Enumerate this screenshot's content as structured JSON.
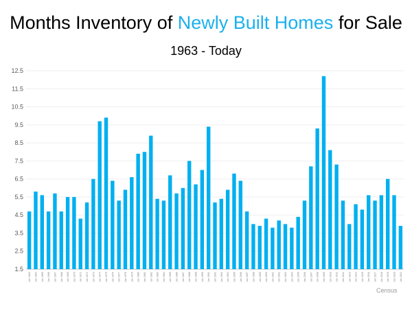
{
  "header": {
    "title_part1": "Months Inventory of ",
    "title_highlight": "Newly Built Homes",
    "title_part2": " for Sale",
    "subtitle": "1963 - Today"
  },
  "source": "Census",
  "colors": {
    "bar": "#00b0f0",
    "highlight": "#1ab0ee",
    "grid": "#eeeeee"
  },
  "chart_data": {
    "type": "bar",
    "title": "Months Inventory of Newly Built Homes for Sale",
    "subtitle": "1963 - Today",
    "xlabel": "",
    "ylabel": "",
    "ylim": [
      1.5,
      12.5
    ],
    "yticks": [
      "1.5",
      "2.5",
      "3.5",
      "4.5",
      "5.5",
      "6.5",
      "7.5",
      "8.5",
      "9.5",
      "10.5",
      "11.5",
      "12.5"
    ],
    "grid": true,
    "categories": [
      "Jan 1963",
      "Jan 1964",
      "Jan 1965",
      "Jan 1966",
      "Jan 1967",
      "Jan 1968",
      "Jan 1969",
      "Jan 1970",
      "Jan 1971",
      "Jan 1972",
      "Jan 1973",
      "Jan 1974",
      "Jan 1975",
      "Jan 1976",
      "Jan 1977",
      "Jan 1978",
      "Jan 1979",
      "Jan 1980",
      "Jan 1981",
      "Jan 1982",
      "Jan 1983",
      "Jan 1984",
      "Jan 1985",
      "Jan 1986",
      "Jan 1987",
      "Jan 1988",
      "Jan 1989",
      "Jan 1990",
      "Jan 1991",
      "Jan 1992",
      "Jan 1993",
      "Jan 1994",
      "Jan 1995",
      "Jan 1996",
      "Jan 1997",
      "Jan 1998",
      "Jan 1999",
      "Jan 2000",
      "Jan 2001",
      "Jan 2002",
      "Jan 2003",
      "Jan 2004",
      "Jan 2005",
      "Jan 2006",
      "Jan 2007",
      "Jan 2008",
      "Jan 2009",
      "Jan 2010",
      "Jan 2011",
      "Jan 2012",
      "Jan 2013",
      "Jan 2014",
      "Jan 2015",
      "Jan 2016",
      "Jan 2017",
      "Jan 2018",
      "Jan 2019",
      "Jan 2020",
      "Jan 2021"
    ],
    "values": [
      4.7,
      5.8,
      5.6,
      4.7,
      5.7,
      4.7,
      5.5,
      5.5,
      4.3,
      5.2,
      6.5,
      9.7,
      9.9,
      6.4,
      5.3,
      5.9,
      6.6,
      7.9,
      8.0,
      8.9,
      5.4,
      5.3,
      6.7,
      5.7,
      6.0,
      7.5,
      6.2,
      7.0,
      9.4,
      5.2,
      5.4,
      5.9,
      6.8,
      6.4,
      4.7,
      4.0,
      3.9,
      4.3,
      3.8,
      4.2,
      4.0,
      3.8,
      4.4,
      5.3,
      7.2,
      9.3,
      12.2,
      8.1,
      7.3,
      5.3,
      4.0,
      5.1,
      4.8,
      5.6,
      5.3,
      5.6,
      6.5,
      5.6,
      3.9
    ]
  }
}
